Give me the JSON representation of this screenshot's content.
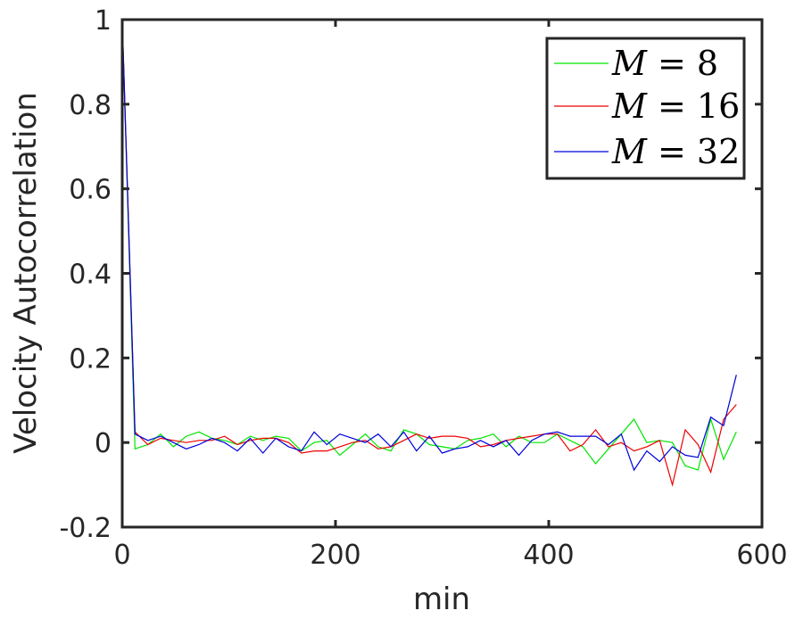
{
  "chart_data": {
    "type": "line",
    "title": "",
    "xlabel": "min",
    "ylabel": "Velocity Autocorrelation",
    "xlim": [
      0,
      600
    ],
    "ylim": [
      -0.2,
      1
    ],
    "xticks": [
      0,
      200,
      400,
      600
    ],
    "yticks": [
      -0.2,
      0,
      0.2,
      0.4,
      0.6,
      0.8,
      1
    ],
    "xtick_labels": [
      "0",
      "200",
      "400",
      "600"
    ],
    "ytick_labels": [
      "-0.2",
      "0",
      "0.2",
      "0.4",
      "0.6",
      "0.8",
      "1"
    ],
    "grid": false,
    "legend_position": "top-right",
    "x": [
      0,
      12,
      24,
      36,
      48,
      60,
      72,
      84,
      96,
      108,
      120,
      132,
      144,
      156,
      168,
      180,
      192,
      204,
      216,
      228,
      240,
      252,
      264,
      276,
      288,
      300,
      312,
      324,
      336,
      348,
      360,
      372,
      384,
      396,
      408,
      420,
      432,
      444,
      456,
      468,
      480,
      492,
      504,
      516,
      528,
      540,
      552,
      564,
      576
    ],
    "series": [
      {
        "name": "M = 8",
        "legend_symbol": "M",
        "legend_value": "8",
        "color": "#00e600",
        "values": [
          1.0,
          -0.015,
          -0.005,
          0.02,
          -0.01,
          0.015,
          0.025,
          0.01,
          0.005,
          -0.005,
          0.015,
          0.005,
          0.015,
          0.01,
          -0.02,
          0.0,
          0.005,
          -0.03,
          -0.005,
          0.02,
          -0.01,
          -0.02,
          0.03,
          0.02,
          -0.005,
          -0.01,
          -0.015,
          0.005,
          0.01,
          0.02,
          -0.01,
          0.015,
          0.0,
          0.0,
          0.02,
          0.005,
          -0.01,
          -0.05,
          -0.015,
          0.02,
          0.055,
          0.0,
          0.005,
          0.0,
          -0.055,
          -0.065,
          0.055,
          -0.04,
          0.025
        ]
      },
      {
        "name": "M = 16",
        "legend_symbol": "M",
        "legend_value": "16",
        "color": "#ee0000",
        "values": [
          1.0,
          0.025,
          -0.005,
          0.01,
          0.005,
          0.0,
          0.005,
          0.005,
          0.015,
          -0.005,
          0.005,
          0.01,
          0.01,
          0.0,
          -0.025,
          -0.02,
          -0.02,
          -0.01,
          0.0,
          0.005,
          -0.015,
          -0.01,
          0.005,
          0.02,
          0.01,
          0.015,
          0.015,
          0.01,
          -0.01,
          -0.005,
          0.005,
          0.01,
          0.015,
          0.02,
          0.02,
          -0.02,
          -0.005,
          0.03,
          -0.01,
          0.0,
          -0.02,
          -0.01,
          0.005,
          -0.1,
          0.03,
          -0.005,
          -0.07,
          0.055,
          0.09
        ]
      },
      {
        "name": "M = 32",
        "legend_symbol": "M",
        "legend_value": "32",
        "color": "#0000dd",
        "values": [
          1.0,
          0.02,
          0.005,
          0.015,
          0.0,
          -0.015,
          -0.005,
          0.01,
          0.0,
          -0.02,
          0.01,
          -0.025,
          0.01,
          -0.01,
          -0.02,
          0.025,
          -0.005,
          0.02,
          0.01,
          0.0,
          0.02,
          -0.01,
          0.025,
          -0.02,
          0.015,
          -0.025,
          -0.015,
          -0.01,
          0.005,
          -0.01,
          0.005,
          -0.03,
          0.005,
          0.02,
          0.025,
          0.015,
          0.015,
          0.015,
          -0.005,
          0.02,
          -0.065,
          -0.02,
          -0.045,
          -0.01,
          -0.03,
          -0.035,
          0.06,
          0.04,
          0.16
        ]
      }
    ]
  },
  "colors": {
    "axes": "#262626",
    "legend_border": "#262626",
    "background": "#ffffff"
  }
}
